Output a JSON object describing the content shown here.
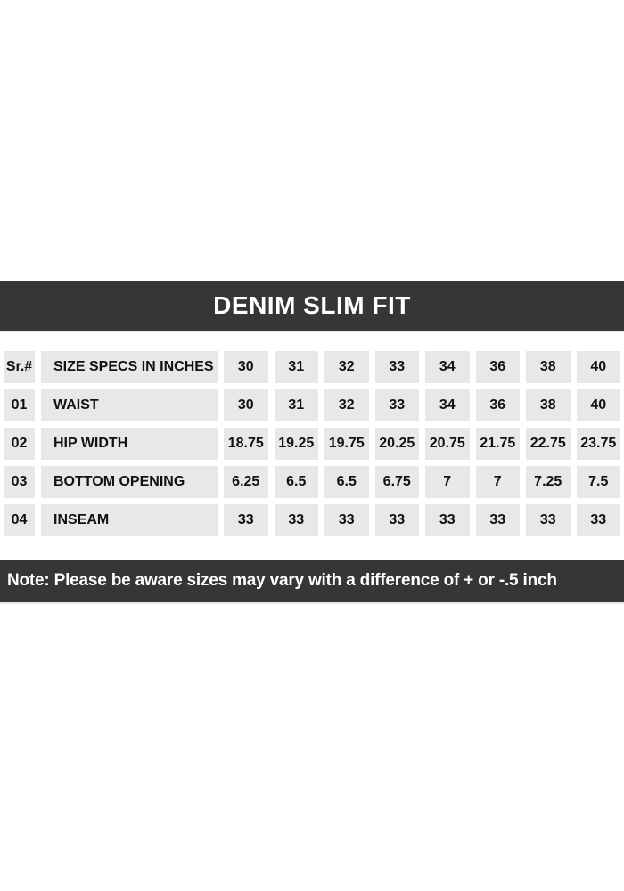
{
  "title": "DENIM SLIM FIT",
  "note": "Note: Please be aware sizes may vary with a difference of + or -.5 inch",
  "colors": {
    "bar_bg": "#363636",
    "bar_text": "#ffffff",
    "cell_bg": "#e8e8e8",
    "cell_text": "#111111"
  },
  "table": {
    "header": {
      "sr": "Sr.#",
      "label": "SIZE SPECS IN INCHES",
      "sizes": [
        "30",
        "31",
        "32",
        "33",
        "34",
        "36",
        "38",
        "40"
      ]
    },
    "rows": [
      {
        "sr": "01",
        "label": "WAIST",
        "values": [
          "30",
          "31",
          "32",
          "33",
          "34",
          "36",
          "38",
          "40"
        ]
      },
      {
        "sr": "02",
        "label": "HIP WIDTH",
        "values": [
          "18.75",
          "19.25",
          "19.75",
          "20.25",
          "20.75",
          "21.75",
          "22.75",
          "23.75"
        ]
      },
      {
        "sr": "03",
        "label": "BOTTOM OPENING",
        "values": [
          "6.25",
          "6.5",
          "6.5",
          "6.75",
          "7",
          "7",
          "7.25",
          "7.5"
        ]
      },
      {
        "sr": "04",
        "label": "INSEAM",
        "values": [
          "33",
          "33",
          "33",
          "33",
          "33",
          "33",
          "33",
          "33"
        ]
      }
    ]
  }
}
